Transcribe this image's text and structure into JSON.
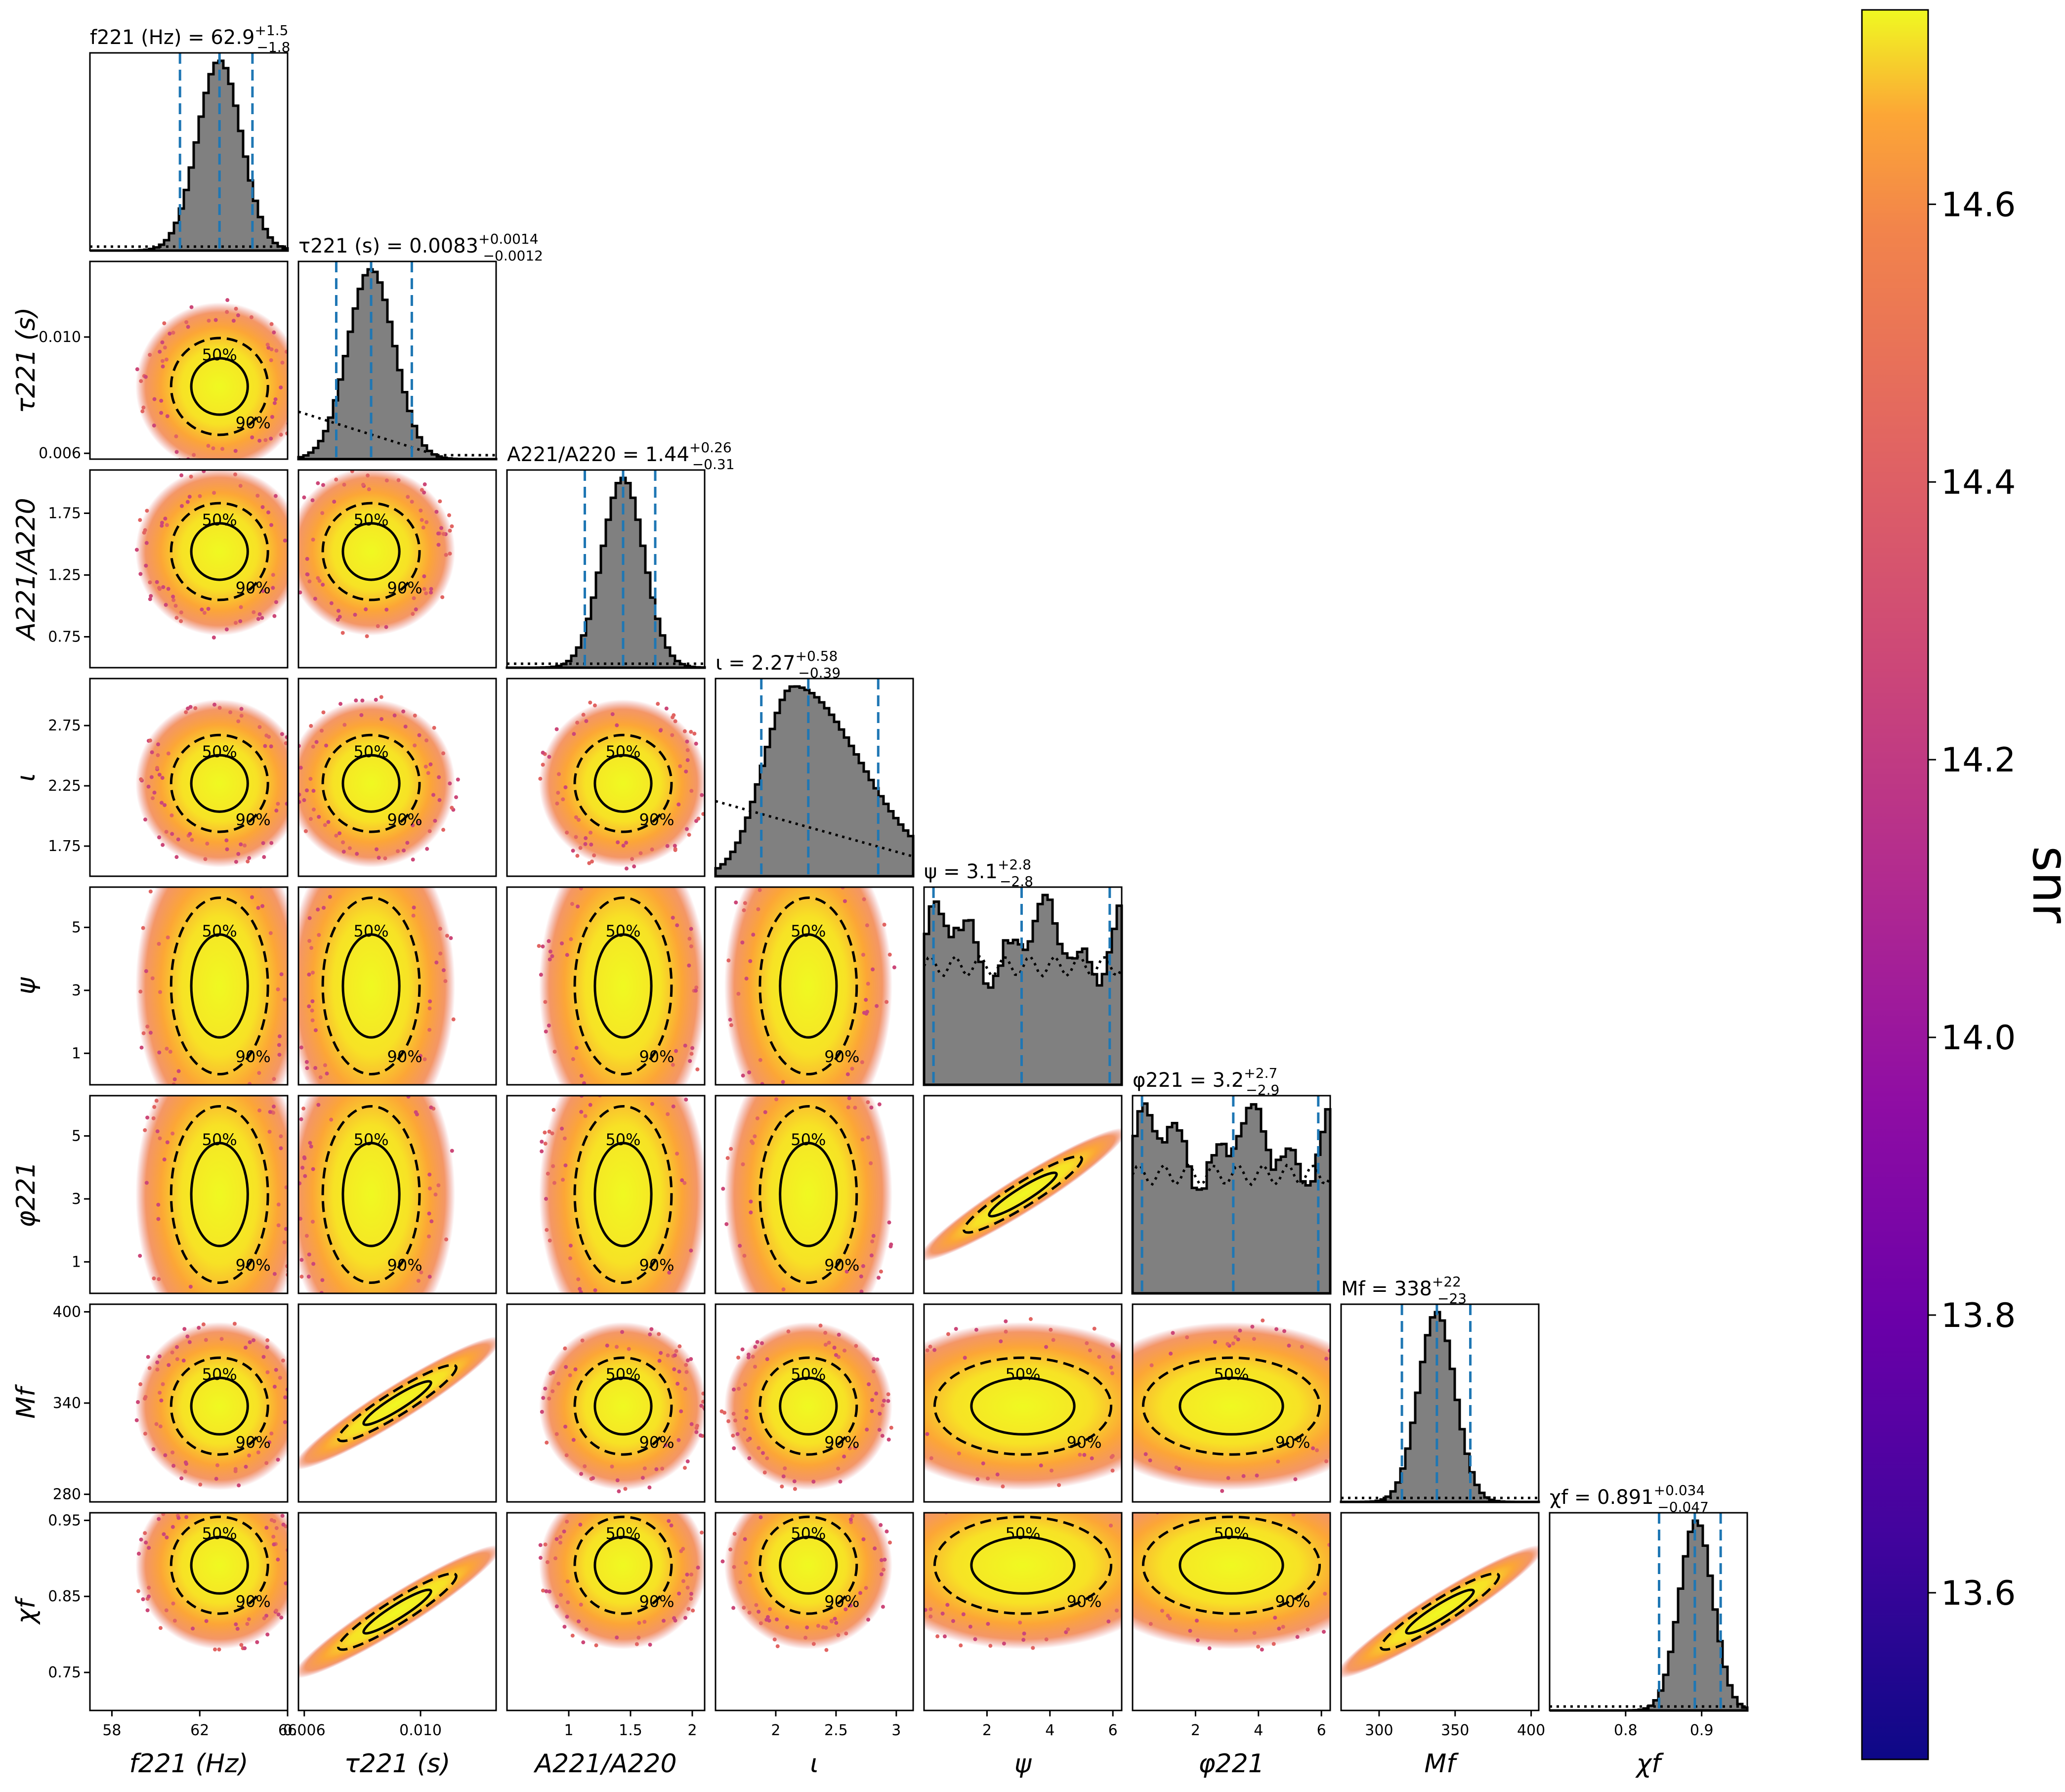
{
  "chart_data": {
    "type": "corner",
    "parameters": [
      {
        "key": "f221",
        "axis_label": "f221 (Hz)",
        "range": [
          57,
          66
        ],
        "ticks": [
          58,
          62,
          66
        ],
        "median": 62.9,
        "plus": "1.5",
        "minus": "1.8",
        "title_prefix": "f221 (Hz) = ",
        "title_value": "62.9",
        "title_plus": "+1.5",
        "title_minus": "−1.8",
        "hist_shape": "normal",
        "hist_mu": 62.9,
        "hist_sigma": 1.0
      },
      {
        "key": "tau221",
        "axis_label": "τ221 (s)",
        "range": [
          0.0058,
          0.0126
        ],
        "ticks": [
          0.006,
          0.01
        ],
        "tick_labels": [
          "0.006",
          "0.010"
        ],
        "median": 0.0083,
        "plus": "0.0014",
        "minus": "0.0012",
        "title_prefix": "τ221 (s) = ",
        "title_value": "0.0083",
        "title_plus": "+0.0014",
        "title_minus": "−0.0012",
        "hist_shape": "normal",
        "hist_mu": 0.0083,
        "hist_sigma": 0.0008
      },
      {
        "key": "A221A220",
        "axis_label": "A221/A220",
        "range": [
          0.5,
          2.1
        ],
        "ticks": [
          0.75,
          1.25,
          1.75
        ],
        "ticks_x": [
          1.0,
          1.5,
          2.0
        ],
        "median": 1.44,
        "plus": "0.26",
        "minus": "0.31",
        "title_prefix": "A221/A220 = ",
        "title_value": "1.44",
        "title_plus": "+0.26",
        "title_minus": "−0.31",
        "hist_shape": "normal",
        "hist_mu": 1.44,
        "hist_sigma": 0.17
      },
      {
        "key": "iota",
        "axis_label": "ι",
        "range": [
          1.5,
          3.14
        ],
        "ticks": [
          1.75,
          2.25,
          2.75
        ],
        "ticks_x": [
          2.0,
          2.5,
          3.0
        ],
        "median": 2.27,
        "plus": "0.58",
        "minus": "0.39",
        "title_prefix": "ι = ",
        "title_value": "2.27",
        "title_plus": "+0.58",
        "title_minus": "−0.39",
        "hist_shape": "skew",
        "hist_mu": 2.15,
        "hist_sigma": 0.35
      },
      {
        "key": "psi",
        "axis_label": "ψ",
        "range": [
          0,
          6.28
        ],
        "ticks": [
          1,
          3,
          5
        ],
        "ticks_x": [
          2,
          4,
          6
        ],
        "median": 3.1,
        "plus": "2.8",
        "minus": "2.8",
        "title_prefix": "ψ = ",
        "title_value": "3.1",
        "title_plus": "+2.8",
        "title_minus": "−2.8",
        "hist_shape": "flat"
      },
      {
        "key": "phi221",
        "axis_label": "φ221",
        "range": [
          0,
          6.28
        ],
        "ticks": [
          1,
          3,
          5
        ],
        "ticks_x": [
          2,
          4,
          6
        ],
        "median": 3.2,
        "plus": "2.7",
        "minus": "2.9",
        "title_prefix": "φ221 = ",
        "title_value": "3.2",
        "title_plus": "+2.7",
        "title_minus": "−2.9",
        "hist_shape": "flat"
      },
      {
        "key": "Mf",
        "axis_label": "Mf",
        "range": [
          275,
          405
        ],
        "ticks": [
          280,
          340,
          400
        ],
        "ticks_x": [
          300,
          350,
          400
        ],
        "median": 338,
        "plus": "22",
        "minus": "23",
        "title_prefix": "Mf = ",
        "title_value": "338",
        "title_plus": "+22",
        "title_minus": "−23",
        "hist_shape": "normal",
        "hist_mu": 338,
        "hist_sigma": 12
      },
      {
        "key": "chif",
        "axis_label": "χf",
        "range": [
          0.7,
          0.96
        ],
        "ticks": [
          0.75,
          0.85,
          0.95
        ],
        "ticks_x": [
          0.8,
          0.9
        ],
        "median": 0.891,
        "plus": "0.034",
        "minus": "0.047",
        "title_prefix": "χf = ",
        "title_value": "0.891",
        "title_plus": "+0.034",
        "title_minus": "−0.047",
        "hist_shape": "normal",
        "hist_mu": 0.893,
        "hist_sigma": 0.022
      }
    ],
    "contour_levels": [
      "50%",
      "90%"
    ],
    "colorbar": {
      "label": "snr",
      "range": [
        13.48,
        14.74
      ],
      "ticks": [
        "13.6",
        "13.8",
        "14.0",
        "14.2",
        "14.4",
        "14.6"
      ],
      "tick_values": [
        13.6,
        13.8,
        14.0,
        14.2,
        14.4,
        14.6
      ],
      "colormap": "plasma"
    },
    "colors": {
      "hist_fill": "#808080",
      "quantile_line": "#1f77b4",
      "contour": "#000000"
    }
  }
}
